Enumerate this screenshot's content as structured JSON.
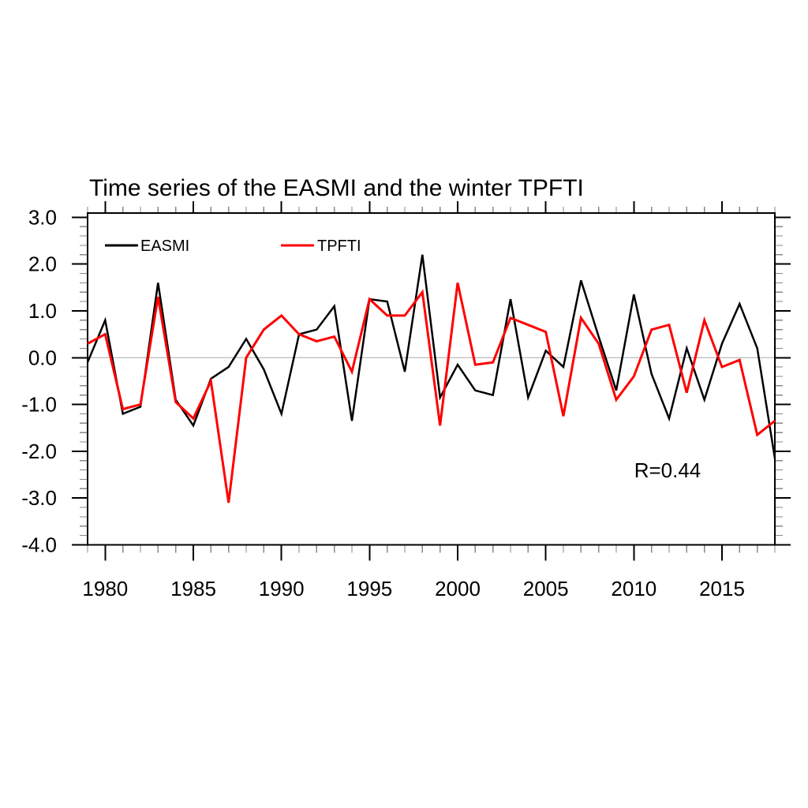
{
  "chart_data": {
    "type": "line",
    "title": "Time series of the EASMI and the winter TPFTI",
    "annotation": "R=0.44",
    "xlim": [
      1979,
      2018
    ],
    "ylim": [
      -4.0,
      3.09
    ],
    "grid": "zero-line-only",
    "legend_position": "top-left-inside",
    "x": [
      1979,
      1980,
      1981,
      1982,
      1983,
      1984,
      1985,
      1986,
      1987,
      1988,
      1989,
      1990,
      1991,
      1992,
      1993,
      1994,
      1995,
      1996,
      1997,
      1998,
      1999,
      2000,
      2001,
      2002,
      2003,
      2004,
      2005,
      2006,
      2007,
      2008,
      2009,
      2010,
      2011,
      2012,
      2013,
      2014,
      2015,
      2016,
      2017,
      2018
    ],
    "series": [
      {
        "name": "EASMI",
        "color": "#000000",
        "values": [
          -0.1,
          0.8,
          -1.2,
          -1.05,
          1.6,
          -0.9,
          -1.45,
          -0.45,
          -0.2,
          0.4,
          -0.25,
          -1.2,
          0.5,
          0.6,
          1.1,
          -1.35,
          1.25,
          1.2,
          -0.3,
          2.2,
          -0.85,
          -0.15,
          -0.7,
          -0.8,
          1.25,
          -0.85,
          0.15,
          -0.2,
          1.65,
          0.45,
          -0.7,
          1.35,
          -0.35,
          -1.3,
          0.2,
          -0.9,
          0.3,
          1.15,
          0.2,
          -2.15
        ]
      },
      {
        "name": "TPFTI",
        "color": "#ff0000",
        "values": [
          0.3,
          0.5,
          -1.1,
          -1.0,
          1.3,
          -0.95,
          -1.3,
          -0.5,
          -3.1,
          0.0,
          0.6,
          0.9,
          0.5,
          0.35,
          0.45,
          -0.3,
          1.25,
          0.9,
          0.9,
          1.4,
          -1.45,
          1.6,
          -0.15,
          -0.1,
          0.85,
          0.7,
          0.55,
          -1.25,
          0.85,
          0.3,
          -0.9,
          -0.4,
          0.6,
          0.7,
          -0.75,
          0.8,
          -0.2,
          -0.05,
          -1.65,
          -1.35
        ]
      }
    ],
    "yticks": [
      3,
      2,
      1,
      0,
      -1,
      -2,
      -3,
      -4
    ],
    "ytick_labels": [
      "3.0",
      "2.0",
      "1.0",
      "0.0",
      "-1.0",
      "-2.0",
      "-3.0",
      "-4.0"
    ],
    "y_minor_step": 0.2,
    "xticks": [
      1980,
      1985,
      1990,
      1995,
      2000,
      2005,
      2010,
      2015
    ],
    "xtick_labels": [
      "1980",
      "1985",
      "1990",
      "1995",
      "2000",
      "2005",
      "2010",
      "2015"
    ],
    "x_minor_step": 1,
    "zero_line_color": "#aaaaaa",
    "frame_color": "#000000"
  }
}
